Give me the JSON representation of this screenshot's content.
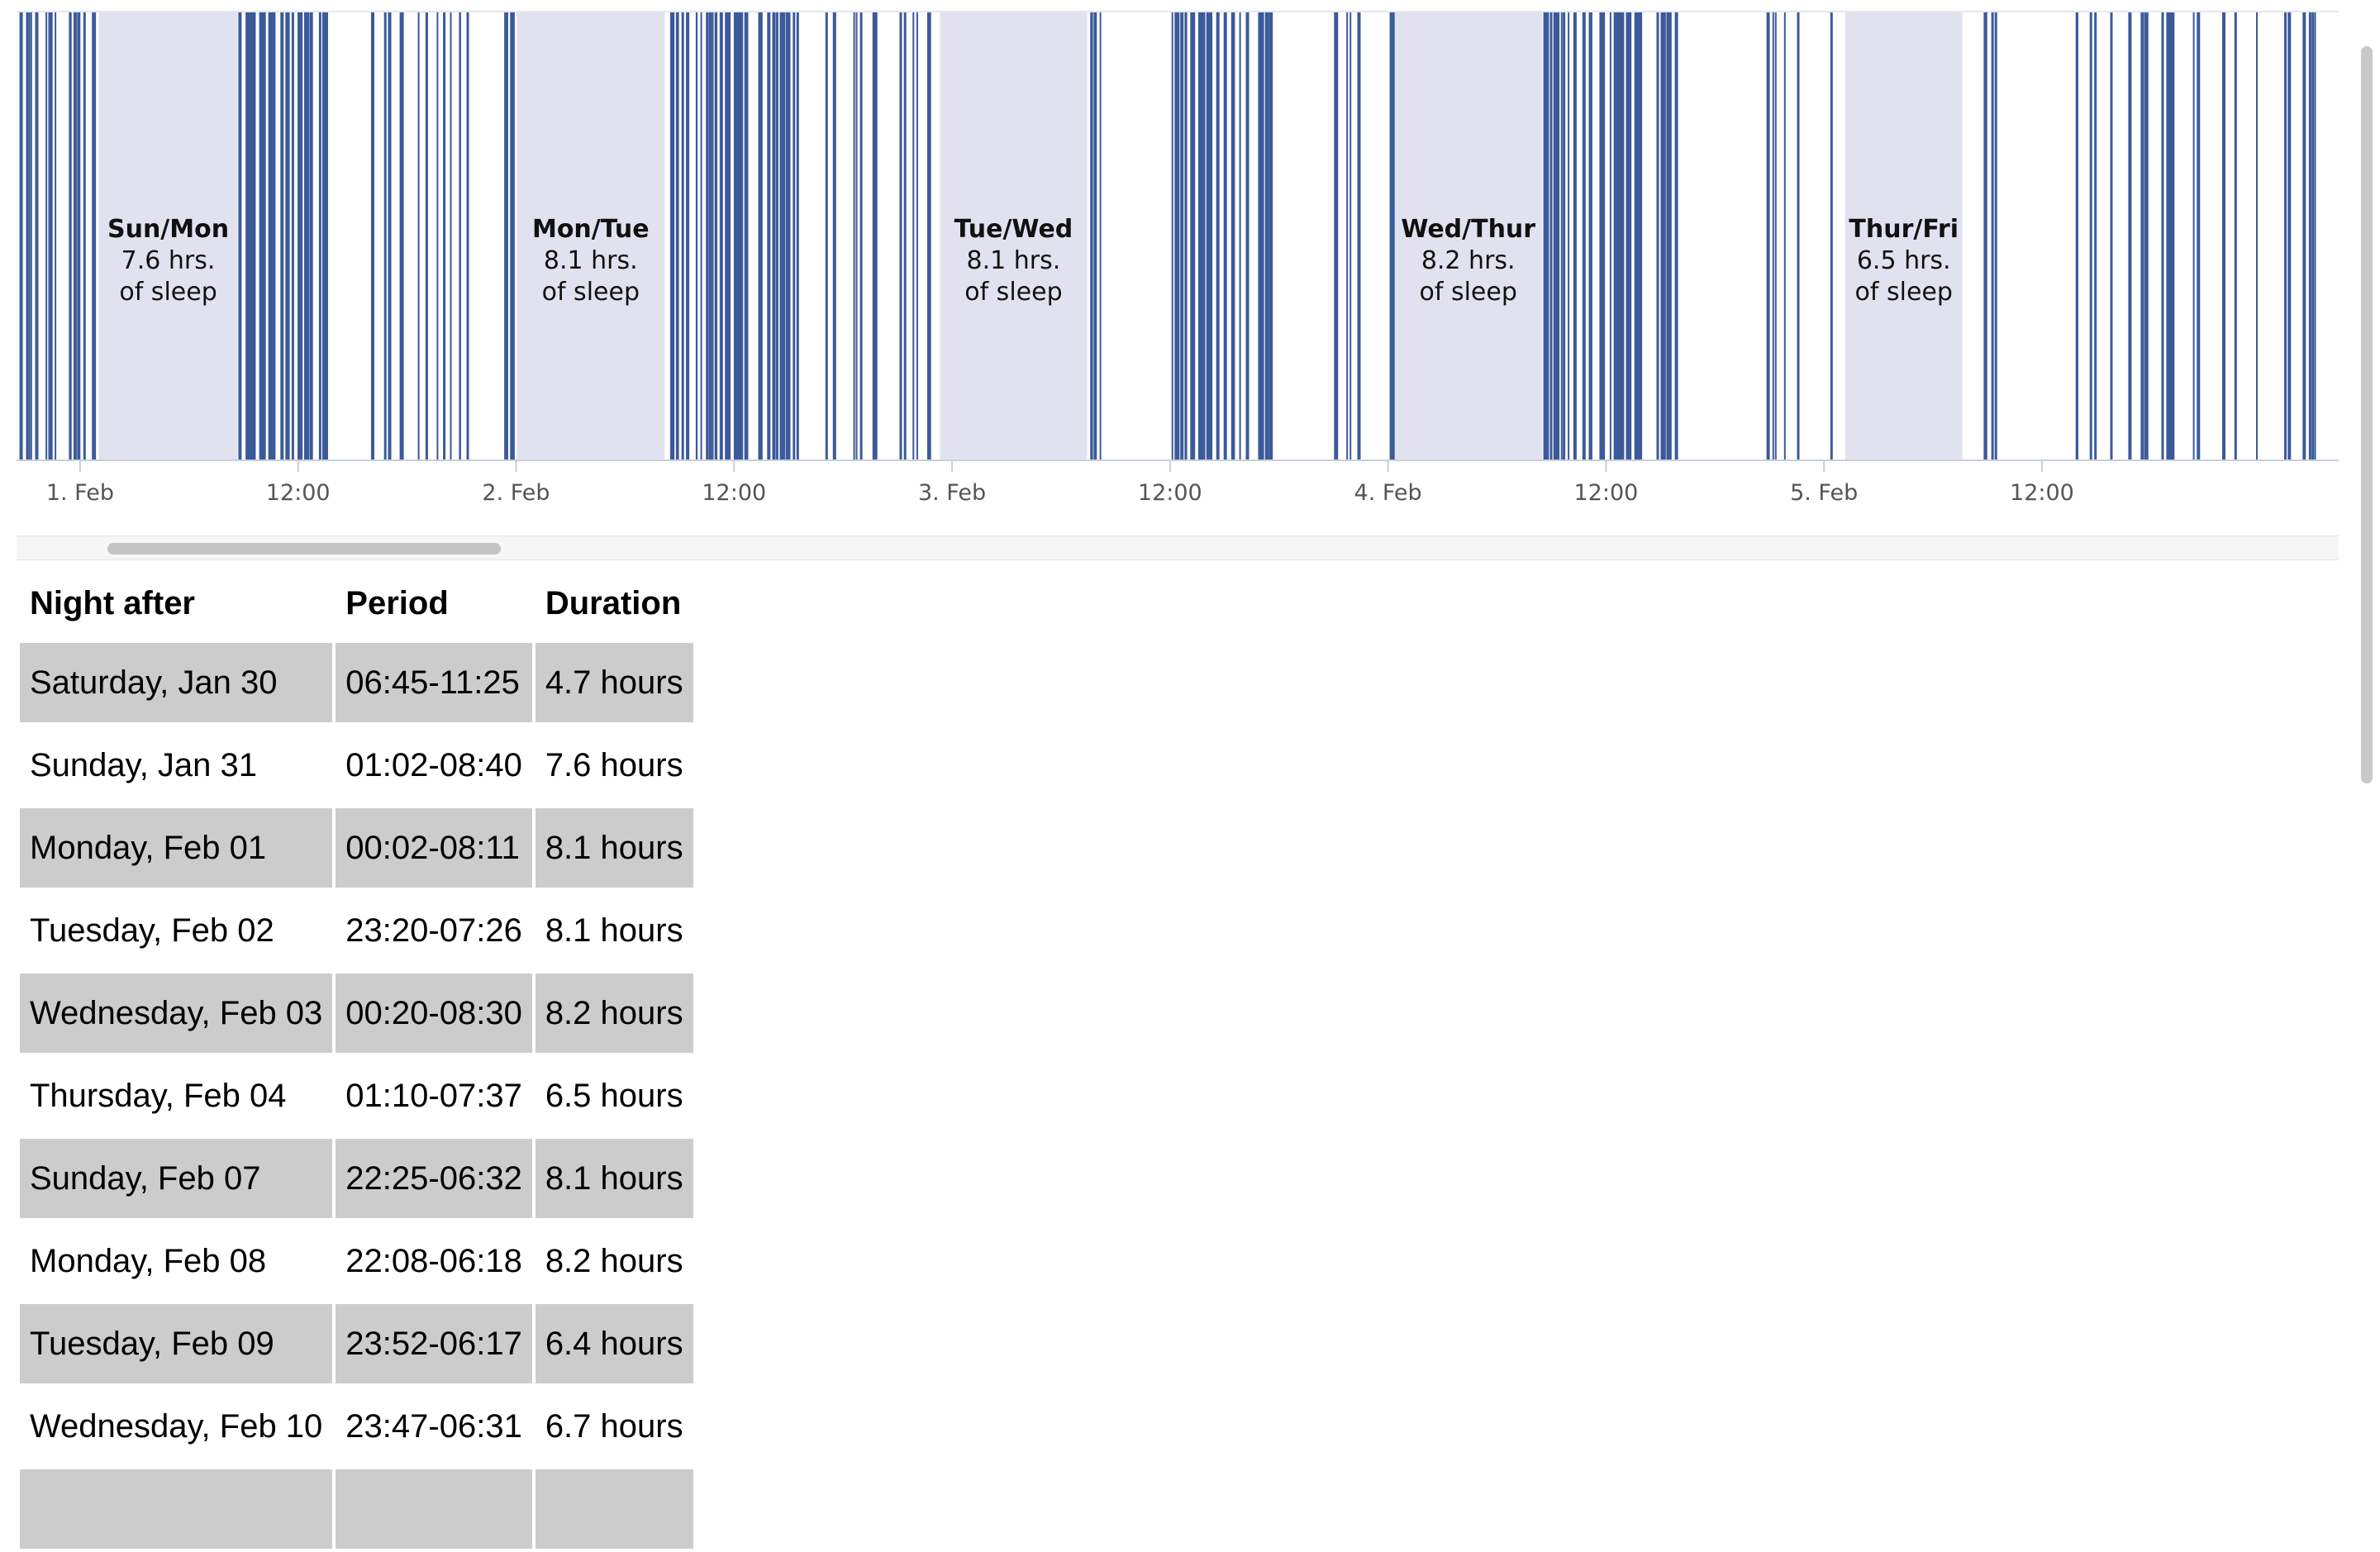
{
  "chart_data": {
    "type": "timeline",
    "x_axis": {
      "ticks": [
        "1. Feb",
        "12:00",
        "2. Feb",
        "12:00",
        "3. Feb",
        "12:00",
        "4. Feb",
        "12:00",
        "5. Feb",
        "12:00"
      ],
      "range": [
        "2016-01-31 20:30",
        "2016-02-06 04:20"
      ]
    },
    "sleep_bands": [
      {
        "title": "Sun/Mon",
        "hours_text": "7.6 hrs.",
        "suffix": "of sleep",
        "start": "2016-02-01 01:02",
        "end": "2016-02-01 08:40"
      },
      {
        "title": "Mon/Tue",
        "hours_text": "8.1 hrs.",
        "suffix": "of sleep",
        "start": "2016-02-02 00:02",
        "end": "2016-02-02 08:11"
      },
      {
        "title": "Tue/Wed",
        "hours_text": "8.1 hrs.",
        "suffix": "of sleep",
        "start": "2016-02-02 23:20",
        "end": "2016-02-03 07:26"
      },
      {
        "title": "Wed/Thur",
        "hours_text": "8.2 hrs.",
        "suffix": "of sleep",
        "start": "2016-02-04 00:20",
        "end": "2016-02-04 08:30"
      },
      {
        "title": "Thur/Fri",
        "hours_text": "6.5 hrs.",
        "suffix": "of sleep",
        "start": "2016-02-05 01:10",
        "end": "2016-02-05 07:37"
      }
    ],
    "activity_clusters": [
      {
        "start": "2016-01-31 20:30",
        "end": "2016-02-01 00:55",
        "count": 20
      },
      {
        "start": "2016-02-01 08:40",
        "end": "2016-02-01 13:30",
        "count": 32
      },
      {
        "start": "2016-02-01 16:00",
        "end": "2016-02-01 21:30",
        "count": 14
      },
      {
        "start": "2016-02-01 23:15",
        "end": "2016-02-02 00:05",
        "count": 6
      },
      {
        "start": "2016-02-02 08:11",
        "end": "2016-02-02 15:30",
        "count": 42
      },
      {
        "start": "2016-02-02 16:30",
        "end": "2016-02-02 22:50",
        "count": 14
      },
      {
        "start": "2016-02-03 07:26",
        "end": "2016-02-03 08:10",
        "count": 5
      },
      {
        "start": "2016-02-03 12:00",
        "end": "2016-02-03 17:30",
        "count": 32
      },
      {
        "start": "2016-02-03 21:00",
        "end": "2016-02-04 00:20",
        "count": 8
      },
      {
        "start": "2016-02-04 08:30",
        "end": "2016-02-04 16:20",
        "count": 46
      },
      {
        "start": "2016-02-04 18:30",
        "end": "2016-02-05 01:10",
        "count": 6
      },
      {
        "start": "2016-02-05 07:37",
        "end": "2016-02-05 09:30",
        "count": 4
      },
      {
        "start": "2016-02-05 13:20",
        "end": "2016-02-06 04:20",
        "count": 26
      }
    ],
    "colors": {
      "band": "#e0e3ef",
      "bar": "#3c5a9a",
      "axis": "#c6d0e0",
      "tick_text": "#555555"
    }
  },
  "table": {
    "headers": [
      "Night after",
      "Period",
      "Duration"
    ],
    "rows": [
      [
        "Saturday, Jan 30",
        "06:45-11:25",
        "4.7 hours"
      ],
      [
        "Sunday, Jan 31",
        "01:02-08:40",
        "7.6 hours"
      ],
      [
        "Monday, Feb 01",
        "00:02-08:11",
        "8.1 hours"
      ],
      [
        "Tuesday, Feb 02",
        "23:20-07:26",
        "8.1 hours"
      ],
      [
        "Wednesday, Feb 03",
        "00:20-08:30",
        "8.2 hours"
      ],
      [
        "Thursday, Feb 04",
        "01:10-07:37",
        "6.5 hours"
      ],
      [
        "Sunday, Feb 07",
        "22:25-06:32",
        "8.1 hours"
      ],
      [
        "Monday, Feb 08",
        "22:08-06:18",
        "8.2 hours"
      ],
      [
        "Tuesday, Feb 09",
        "23:52-06:17",
        "6.4 hours"
      ],
      [
        "Wednesday, Feb 10",
        "23:47-06:31",
        "6.7 hours"
      ],
      [
        "",
        "",
        ""
      ]
    ]
  }
}
